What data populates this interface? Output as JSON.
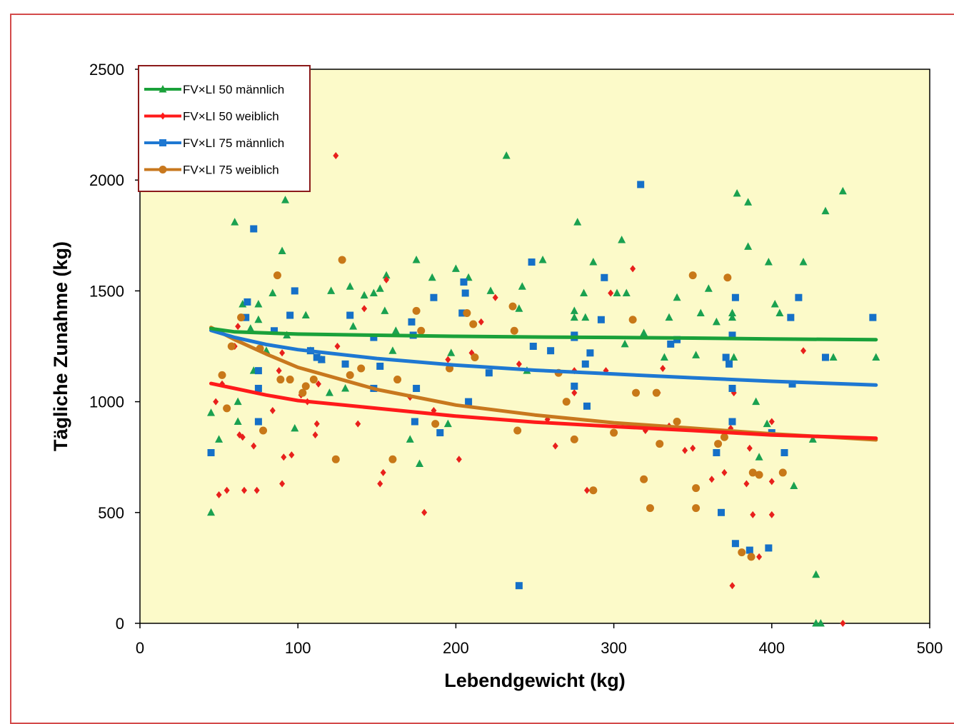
{
  "chart_data": {
    "type": "scatter",
    "title": "",
    "xlabel": "Lebendgewicht (kg)",
    "ylabel": "Tägliche Zunahme (kg)",
    "xlim": [
      0,
      500
    ],
    "ylim": [
      0,
      2500
    ],
    "xticks": [
      0,
      100,
      200,
      300,
      400,
      500
    ],
    "yticks": [
      0,
      500,
      1000,
      1500,
      2000,
      2500
    ],
    "x_tick_labels": [
      "0",
      "100",
      "200",
      "300",
      "400",
      "500"
    ],
    "y_tick_labels": [
      "0",
      "500",
      "1000",
      "1500",
      "2000",
      "2500"
    ],
    "grid": false,
    "plot_background": "#fcfac9",
    "legend_position": "top-left",
    "series": [
      {
        "name": "FV×LI 50 männlich",
        "color": "#1aa150",
        "trend_color": "#1aa13a",
        "marker": "triangle",
        "trend": [
          [
            45,
            1330
          ],
          [
            60,
            1315
          ],
          [
            100,
            1305
          ],
          [
            150,
            1300
          ],
          [
            200,
            1295
          ],
          [
            250,
            1292
          ],
          [
            300,
            1290
          ],
          [
            350,
            1287
          ],
          [
            400,
            1283
          ],
          [
            466,
            1280
          ]
        ],
        "points": [
          [
            45,
            950
          ],
          [
            45,
            500
          ],
          [
            50,
            830
          ],
          [
            60,
            1810
          ],
          [
            62,
            1000
          ],
          [
            62,
            910
          ],
          [
            65,
            1440
          ],
          [
            70,
            1330
          ],
          [
            72,
            1140
          ],
          [
            75,
            1440
          ],
          [
            75,
            1370
          ],
          [
            80,
            1230
          ],
          [
            84,
            1490
          ],
          [
            90,
            1680
          ],
          [
            92,
            1910
          ],
          [
            93,
            1300
          ],
          [
            98,
            880
          ],
          [
            105,
            1390
          ],
          [
            108,
            1230
          ],
          [
            115,
            1190
          ],
          [
            120,
            1040
          ],
          [
            121,
            1500
          ],
          [
            130,
            1060
          ],
          [
            133,
            1520
          ],
          [
            135,
            1340
          ],
          [
            142,
            1480
          ],
          [
            148,
            1490
          ],
          [
            152,
            1510
          ],
          [
            155,
            1410
          ],
          [
            156,
            1570
          ],
          [
            160,
            1230
          ],
          [
            162,
            1320
          ],
          [
            171,
            830
          ],
          [
            175,
            1640
          ],
          [
            177,
            720
          ],
          [
            185,
            1560
          ],
          [
            195,
            900
          ],
          [
            197,
            1220
          ],
          [
            200,
            1600
          ],
          [
            208,
            1560
          ],
          [
            222,
            1500
          ],
          [
            232,
            2110
          ],
          [
            240,
            1420
          ],
          [
            242,
            1520
          ],
          [
            245,
            1140
          ],
          [
            255,
            1640
          ],
          [
            275,
            1410
          ],
          [
            275,
            1380
          ],
          [
            277,
            1810
          ],
          [
            281,
            1490
          ],
          [
            282,
            1380
          ],
          [
            287,
            1630
          ],
          [
            302,
            1490
          ],
          [
            305,
            1730
          ],
          [
            307,
            1260
          ],
          [
            308,
            1490
          ],
          [
            319,
            1310
          ],
          [
            332,
            1200
          ],
          [
            335,
            1380
          ],
          [
            340,
            1470
          ],
          [
            352,
            1210
          ],
          [
            355,
            1400
          ],
          [
            360,
            1510
          ],
          [
            365,
            1360
          ],
          [
            375,
            1400
          ],
          [
            375,
            1380
          ],
          [
            376,
            1200
          ],
          [
            378,
            1940
          ],
          [
            385,
            1700
          ],
          [
            385,
            1900
          ],
          [
            390,
            1000
          ],
          [
            392,
            750
          ],
          [
            397,
            900
          ],
          [
            398,
            1630
          ],
          [
            402,
            1440
          ],
          [
            405,
            1400
          ],
          [
            414,
            620
          ],
          [
            420,
            1630
          ],
          [
            426,
            830
          ],
          [
            428,
            220
          ],
          [
            428,
            0
          ],
          [
            431,
            0
          ],
          [
            434,
            1860
          ],
          [
            439,
            1200
          ],
          [
            445,
            1950
          ],
          [
            466,
            1200
          ]
        ]
      },
      {
        "name": "FV×LI 50 weiblich",
        "color": "#e8201c",
        "trend_color": "#ff1a1a",
        "marker": "diamond",
        "trend": [
          [
            45,
            1082
          ],
          [
            60,
            1060
          ],
          [
            80,
            1030
          ],
          [
            100,
            1005
          ],
          [
            150,
            970
          ],
          [
            200,
            935
          ],
          [
            250,
            908
          ],
          [
            300,
            888
          ],
          [
            350,
            870
          ],
          [
            400,
            850
          ],
          [
            466,
            835
          ]
        ],
        "points": [
          [
            48,
            1000
          ],
          [
            50,
            580
          ],
          [
            52,
            1080
          ],
          [
            55,
            600
          ],
          [
            60,
            1250
          ],
          [
            62,
            1340
          ],
          [
            63,
            850
          ],
          [
            65,
            840
          ],
          [
            66,
            600
          ],
          [
            72,
            800
          ],
          [
            74,
            600
          ],
          [
            84,
            960
          ],
          [
            88,
            1140
          ],
          [
            90,
            1220
          ],
          [
            90,
            630
          ],
          [
            91,
            750
          ],
          [
            96,
            760
          ],
          [
            102,
            1030
          ],
          [
            106,
            1000
          ],
          [
            111,
            850
          ],
          [
            112,
            900
          ],
          [
            113,
            1080
          ],
          [
            124,
            2110
          ],
          [
            125,
            1250
          ],
          [
            138,
            900
          ],
          [
            142,
            1420
          ],
          [
            152,
            630
          ],
          [
            154,
            680
          ],
          [
            156,
            1550
          ],
          [
            163,
            1100
          ],
          [
            171,
            1020
          ],
          [
            180,
            500
          ],
          [
            186,
            960
          ],
          [
            195,
            1190
          ],
          [
            202,
            740
          ],
          [
            210,
            1220
          ],
          [
            216,
            1360
          ],
          [
            225,
            1470
          ],
          [
            240,
            1170
          ],
          [
            258,
            920
          ],
          [
            263,
            800
          ],
          [
            275,
            1040
          ],
          [
            275,
            1140
          ],
          [
            283,
            600
          ],
          [
            295,
            1140
          ],
          [
            298,
            1490
          ],
          [
            312,
            1600
          ],
          [
            320,
            870
          ],
          [
            328,
            1040
          ],
          [
            331,
            1150
          ],
          [
            335,
            890
          ],
          [
            345,
            780
          ],
          [
            350,
            790
          ],
          [
            362,
            650
          ],
          [
            370,
            680
          ],
          [
            374,
            880
          ],
          [
            375,
            170
          ],
          [
            376,
            1040
          ],
          [
            384,
            630
          ],
          [
            386,
            790
          ],
          [
            388,
            490
          ],
          [
            392,
            300
          ],
          [
            400,
            910
          ],
          [
            400,
            640
          ],
          [
            400,
            490
          ],
          [
            420,
            1230
          ],
          [
            445,
            0
          ]
        ]
      },
      {
        "name": "FV×LI 75 männlich",
        "color": "#1570c8",
        "trend_color": "#1e78d2",
        "marker": "square",
        "trend": [
          [
            45,
            1322
          ],
          [
            60,
            1290
          ],
          [
            80,
            1258
          ],
          [
            100,
            1235
          ],
          [
            150,
            1195
          ],
          [
            200,
            1165
          ],
          [
            250,
            1142
          ],
          [
            300,
            1125
          ],
          [
            350,
            1108
          ],
          [
            400,
            1092
          ],
          [
            466,
            1075
          ]
        ],
        "points": [
          [
            45,
            770
          ],
          [
            67,
            1380
          ],
          [
            68,
            1450
          ],
          [
            72,
            1780
          ],
          [
            75,
            1140
          ],
          [
            75,
            1060
          ],
          [
            75,
            910
          ],
          [
            85,
            1320
          ],
          [
            95,
            1390
          ],
          [
            98,
            1500
          ],
          [
            108,
            1230
          ],
          [
            112,
            1200
          ],
          [
            115,
            1190
          ],
          [
            130,
            1170
          ],
          [
            133,
            1390
          ],
          [
            148,
            1060
          ],
          [
            148,
            1290
          ],
          [
            152,
            1160
          ],
          [
            172,
            1360
          ],
          [
            173,
            1300
          ],
          [
            174,
            910
          ],
          [
            175,
            1060
          ],
          [
            186,
            1470
          ],
          [
            190,
            860
          ],
          [
            204,
            1400
          ],
          [
            205,
            1540
          ],
          [
            206,
            1490
          ],
          [
            208,
            1000
          ],
          [
            221,
            1130
          ],
          [
            240,
            170
          ],
          [
            248,
            1630
          ],
          [
            249,
            1250
          ],
          [
            260,
            1230
          ],
          [
            275,
            1070
          ],
          [
            275,
            1290
          ],
          [
            275,
            1300
          ],
          [
            282,
            1170
          ],
          [
            283,
            980
          ],
          [
            285,
            1220
          ],
          [
            292,
            1370
          ],
          [
            294,
            1560
          ],
          [
            317,
            1980
          ],
          [
            336,
            1260
          ],
          [
            340,
            1280
          ],
          [
            365,
            770
          ],
          [
            368,
            500
          ],
          [
            371,
            1200
          ],
          [
            373,
            1170
          ],
          [
            375,
            1060
          ],
          [
            375,
            910
          ],
          [
            375,
            1300
          ],
          [
            377,
            1470
          ],
          [
            377,
            360
          ],
          [
            386,
            330
          ],
          [
            398,
            340
          ],
          [
            400,
            860
          ],
          [
            408,
            770
          ],
          [
            412,
            1380
          ],
          [
            413,
            1080
          ],
          [
            417,
            1470
          ],
          [
            434,
            1200
          ],
          [
            464,
            1380
          ]
        ]
      },
      {
        "name": "FV×LI 75 weiblich",
        "color": "#c87818",
        "trend_color": "#c8781e",
        "marker": "circle",
        "trend": [
          [
            45,
            1335
          ],
          [
            60,
            1280
          ],
          [
            80,
            1215
          ],
          [
            100,
            1155
          ],
          [
            150,
            1055
          ],
          [
            200,
            985
          ],
          [
            250,
            940
          ],
          [
            300,
            905
          ],
          [
            350,
            880
          ],
          [
            400,
            855
          ],
          [
            466,
            828
          ]
        ],
        "points": [
          [
            52,
            1120
          ],
          [
            55,
            970
          ],
          [
            58,
            1250
          ],
          [
            64,
            1380
          ],
          [
            76,
            1240
          ],
          [
            78,
            870
          ],
          [
            87,
            1570
          ],
          [
            89,
            1100
          ],
          [
            95,
            1100
          ],
          [
            103,
            1040
          ],
          [
            105,
            1070
          ],
          [
            110,
            1100
          ],
          [
            124,
            740
          ],
          [
            128,
            1640
          ],
          [
            133,
            1120
          ],
          [
            140,
            1150
          ],
          [
            160,
            740
          ],
          [
            163,
            1100
          ],
          [
            175,
            1410
          ],
          [
            178,
            1320
          ],
          [
            187,
            900
          ],
          [
            196,
            1150
          ],
          [
            207,
            1400
          ],
          [
            211,
            1350
          ],
          [
            212,
            1200
          ],
          [
            236,
            1430
          ],
          [
            237,
            1320
          ],
          [
            239,
            870
          ],
          [
            265,
            1130
          ],
          [
            270,
            1000
          ],
          [
            275,
            830
          ],
          [
            287,
            600
          ],
          [
            300,
            860
          ],
          [
            312,
            1370
          ],
          [
            314,
            1040
          ],
          [
            319,
            650
          ],
          [
            323,
            520
          ],
          [
            327,
            1040
          ],
          [
            329,
            810
          ],
          [
            340,
            910
          ],
          [
            350,
            1570
          ],
          [
            352,
            610
          ],
          [
            352,
            520
          ],
          [
            366,
            810
          ],
          [
            370,
            840
          ],
          [
            372,
            1560
          ],
          [
            381,
            320
          ],
          [
            387,
            300
          ],
          [
            388,
            680
          ],
          [
            392,
            670
          ],
          [
            407,
            680
          ]
        ]
      }
    ]
  }
}
